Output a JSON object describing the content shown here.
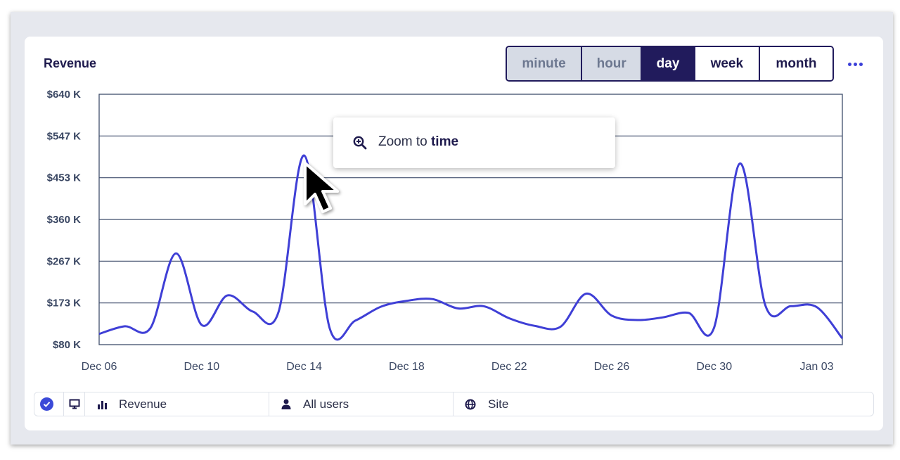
{
  "panel": {
    "title": "Revenue",
    "granularity": {
      "options": [
        "minute",
        "hour",
        "day",
        "week",
        "month"
      ],
      "selected": "day",
      "disabled": [
        "minute",
        "hour"
      ]
    },
    "more_icon": "more-horizontal-icon"
  },
  "context_menu": {
    "icon": "zoom-in-icon",
    "label_prefix": "Zoom to",
    "label_bold": "time"
  },
  "legend": {
    "check_icon": "check-circle-icon",
    "device_icon": "monitor-icon",
    "metric_icon": "bar-chart-icon",
    "metric": "Revenue",
    "segment_icon": "user-icon",
    "segment": "All users",
    "property_icon": "globe-icon",
    "property": "Site"
  },
  "colors": {
    "series": "#3f3fd6",
    "accent_dark": "#211b5c",
    "grid": "#3f4d6b"
  },
  "chart_data": {
    "type": "line",
    "title": "Revenue",
    "y_tick_labels": [
      "$80 K",
      "$173 K",
      "$267 K",
      "$360 K",
      "$453 K",
      "$547 K",
      "$640 K"
    ],
    "ylim": [
      80,
      640
    ],
    "y_unit": "K",
    "x_tick_labels": [
      "Dec 06",
      "Dec 10",
      "Dec 14",
      "Dec 18",
      "Dec 22",
      "Dec 26",
      "Dec 30",
      "Jan 03"
    ],
    "x_tick_dates": [
      "2023-12-06",
      "2023-12-10",
      "2023-12-14",
      "2023-12-18",
      "2023-12-22",
      "2023-12-26",
      "2023-12-30",
      "2024-01-03"
    ],
    "grid": true,
    "series": [
      {
        "values": [
          [
            "2023-12-06",
            104
          ],
          [
            "2023-12-07",
            121
          ],
          [
            "2023-12-08",
            117
          ],
          [
            "2023-12-09",
            284
          ],
          [
            "2023-12-10",
            124
          ],
          [
            "2023-12-11",
            190
          ],
          [
            "2023-12-12",
            154
          ],
          [
            "2023-12-13",
            153
          ],
          [
            "2023-12-14",
            503
          ],
          [
            "2023-12-15",
            116
          ],
          [
            "2023-12-16",
            134
          ],
          [
            "2023-12-17",
            165
          ],
          [
            "2023-12-18",
            178
          ],
          [
            "2023-12-19",
            182
          ],
          [
            "2023-12-20",
            161
          ],
          [
            "2023-12-21",
            166
          ],
          [
            "2023-12-22",
            139
          ],
          [
            "2023-12-23",
            122
          ],
          [
            "2023-12-24",
            120
          ],
          [
            "2023-12-25",
            194
          ],
          [
            "2023-12-26",
            145
          ],
          [
            "2023-12-27",
            135
          ],
          [
            "2023-12-28",
            141
          ],
          [
            "2023-12-29",
            151
          ],
          [
            "2023-12-30",
            119
          ],
          [
            "2023-12-31",
            485
          ],
          [
            "2024-01-01",
            167
          ],
          [
            "2024-01-02",
            166
          ],
          [
            "2024-01-03",
            164
          ],
          [
            "2024-01-04",
            94
          ]
        ]
      }
    ]
  }
}
